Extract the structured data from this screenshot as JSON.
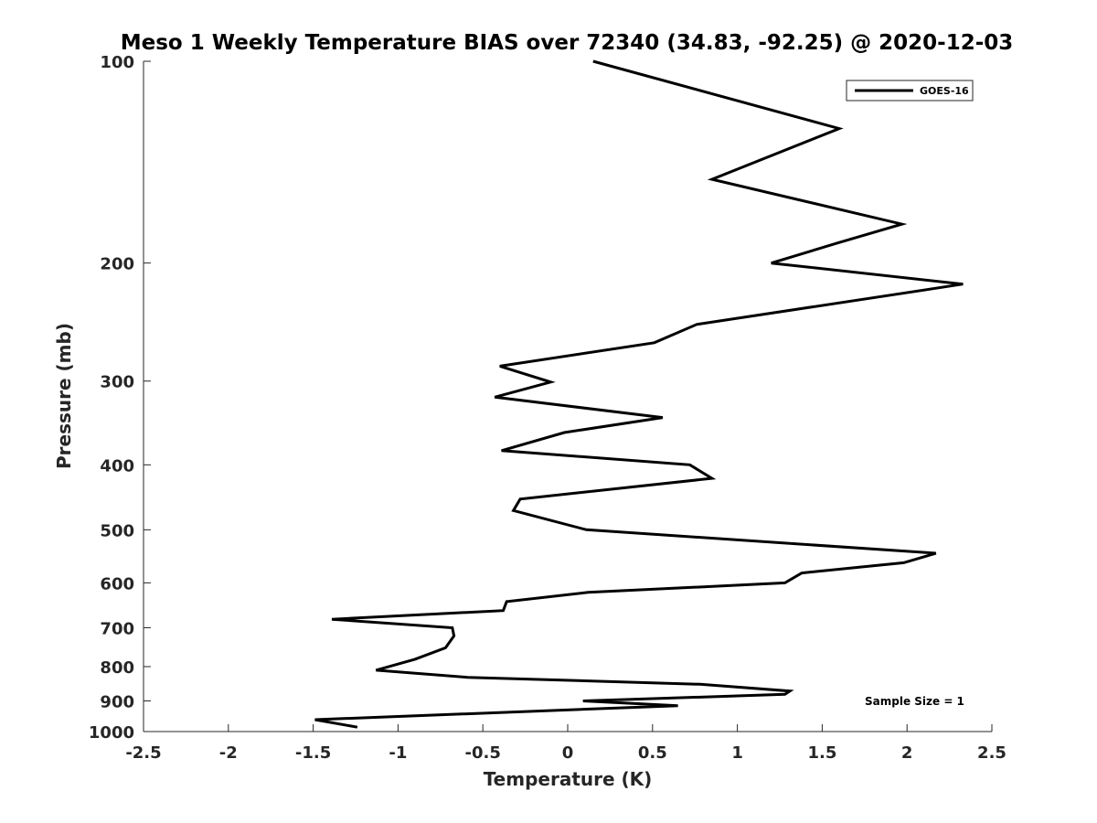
{
  "chart_data": {
    "type": "line",
    "title": "Meso 1 Weekly Temperature BIAS over 72340 (34.83, -92.25) @ 2020-12-03",
    "xlabel": "Temperature (K)",
    "ylabel": "Pressure (mb)",
    "xlim": [
      -2.5,
      2.5
    ],
    "ylim": [
      100,
      1000
    ],
    "y_scale": "log",
    "y_reversed": true,
    "grid": false,
    "legend_position": "top-right",
    "x_ticks": [
      -2.5,
      -2,
      -1.5,
      -1,
      -0.5,
      0,
      0.5,
      1,
      1.5,
      2,
      2.5
    ],
    "x_tick_labels": [
      "-2.5",
      "-2",
      "-1.5",
      "-1",
      "-0.5",
      "0",
      "0.5",
      "1",
      "1.5",
      "2",
      "2.5"
    ],
    "y_ticks": [
      100,
      200,
      300,
      400,
      500,
      600,
      700,
      800,
      900,
      1000
    ],
    "y_tick_labels": [
      "100",
      "200",
      "300",
      "400",
      "500",
      "600",
      "700",
      "800",
      "900",
      "1000"
    ],
    "series": [
      {
        "name": "GOES-16",
        "color": "#000000",
        "points": [
          {
            "x": 0.15,
            "y": 100
          },
          {
            "x": 1.6,
            "y": 126
          },
          {
            "x": 0.85,
            "y": 150
          },
          {
            "x": 1.97,
            "y": 175
          },
          {
            "x": 1.58,
            "y": 187
          },
          {
            "x": 1.2,
            "y": 200
          },
          {
            "x": 2.33,
            "y": 215
          },
          {
            "x": 0.76,
            "y": 247
          },
          {
            "x": 0.51,
            "y": 263
          },
          {
            "x": -0.4,
            "y": 285
          },
          {
            "x": -0.1,
            "y": 301
          },
          {
            "x": -0.43,
            "y": 317
          },
          {
            "x": 0.56,
            "y": 340
          },
          {
            "x": -0.02,
            "y": 358
          },
          {
            "x": -0.39,
            "y": 381
          },
          {
            "x": 0.72,
            "y": 400
          },
          {
            "x": 0.85,
            "y": 419
          },
          {
            "x": -0.28,
            "y": 450
          },
          {
            "x": -0.32,
            "y": 468
          },
          {
            "x": 0.11,
            "y": 500
          },
          {
            "x": 2.17,
            "y": 542
          },
          {
            "x": 1.98,
            "y": 560
          },
          {
            "x": 1.38,
            "y": 580
          },
          {
            "x": 1.28,
            "y": 600
          },
          {
            "x": 0.12,
            "y": 620
          },
          {
            "x": -0.36,
            "y": 640
          },
          {
            "x": -0.38,
            "y": 660
          },
          {
            "x": -1.39,
            "y": 680
          },
          {
            "x": -0.68,
            "y": 700
          },
          {
            "x": -0.67,
            "y": 720
          },
          {
            "x": -0.72,
            "y": 750
          },
          {
            "x": -0.9,
            "y": 780
          },
          {
            "x": -1.13,
            "y": 810
          },
          {
            "x": -0.59,
            "y": 830
          },
          {
            "x": 0.78,
            "y": 850
          },
          {
            "x": 1.31,
            "y": 870
          },
          {
            "x": 1.28,
            "y": 880
          },
          {
            "x": 0.09,
            "y": 900
          },
          {
            "x": 0.65,
            "y": 915
          },
          {
            "x": -1.49,
            "y": 960
          },
          {
            "x": -1.24,
            "y": 985
          }
        ]
      }
    ],
    "annotation": "Sample Size = 1"
  }
}
